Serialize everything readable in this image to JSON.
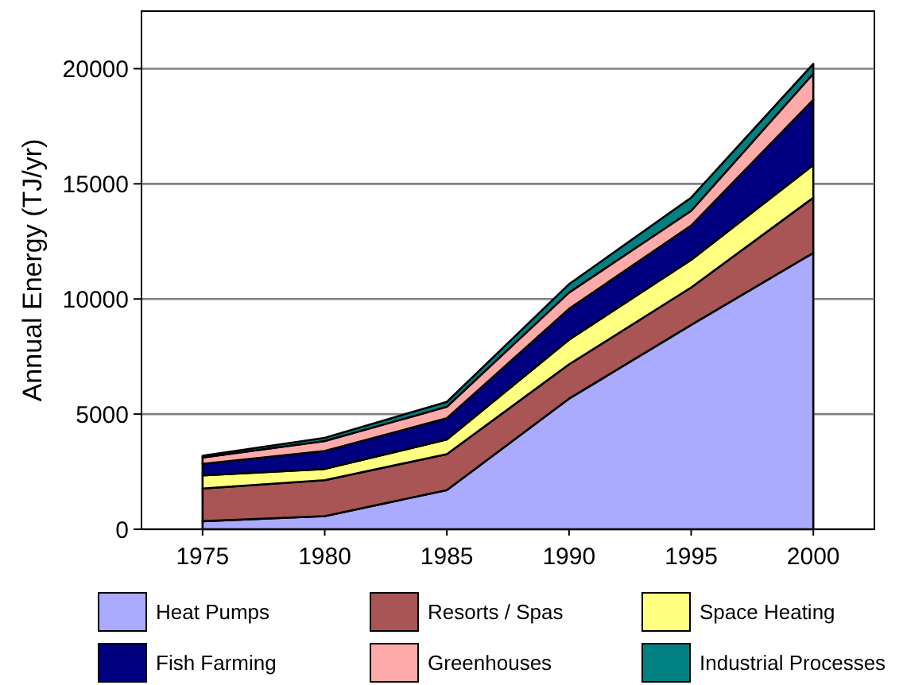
{
  "chart_data": {
    "type": "area",
    "stacked": true,
    "ylabel": "Annual Energy (TJ/yr)",
    "x": [
      1975,
      1980,
      1985,
      1990,
      1995,
      2000
    ],
    "xlim": [
      1972.5,
      2002.5
    ],
    "xticks": [
      1975,
      1980,
      1985,
      1990,
      1995,
      2000
    ],
    "ylim": [
      0,
      22500
    ],
    "yticks": [
      0,
      5000,
      10000,
      15000,
      20000
    ],
    "grid": "y",
    "legend": "bottom",
    "series": [
      {
        "name": "Heat Pumps",
        "color": "#aaaaff",
        "values": [
          350,
          570,
          1700,
          5670,
          8870,
          12000
        ]
      },
      {
        "name": "Resorts / Spas",
        "color": "#a95555",
        "values": [
          1420,
          1560,
          1560,
          1490,
          1630,
          2400
        ]
      },
      {
        "name": "Space Heating",
        "color": "#ffff80",
        "values": [
          570,
          490,
          640,
          1070,
          1200,
          1420
        ]
      },
      {
        "name": "Fish Farming",
        "color": "#000080",
        "values": [
          500,
          780,
          920,
          1340,
          1490,
          2830
        ]
      },
      {
        "name": "Greenhouses",
        "color": "#ffaaaa",
        "values": [
          280,
          430,
          500,
          710,
          640,
          1140
        ]
      },
      {
        "name": "Industrial Processes",
        "color": "#008080",
        "values": [
          70,
          140,
          210,
          360,
          570,
          420
        ]
      }
    ]
  }
}
